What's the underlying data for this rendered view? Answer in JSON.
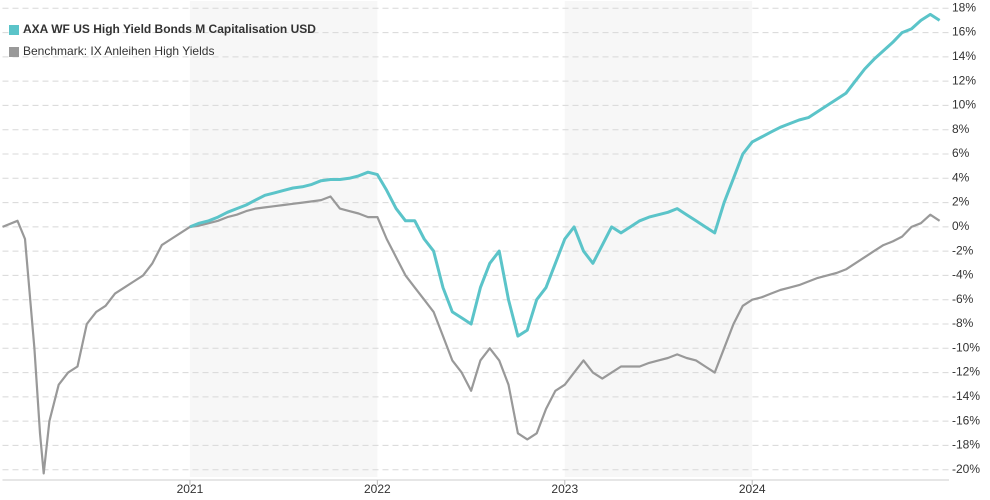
{
  "chart_data": {
    "type": "line",
    "x": [
      2020,
      2020.08,
      2020.12,
      2020.17,
      2020.2,
      2020.22,
      2020.25,
      2020.3,
      2020.35,
      2020.4,
      2020.45,
      2020.5,
      2020.55,
      2020.6,
      2020.65,
      2020.7,
      2020.75,
      2020.8,
      2020.85,
      2020.9,
      2020.95,
      2021,
      2021.05,
      2021.1,
      2021.15,
      2021.2,
      2021.25,
      2021.3,
      2021.35,
      2021.4,
      2021.45,
      2021.5,
      2021.55,
      2021.6,
      2021.65,
      2021.7,
      2021.75,
      2021.8,
      2021.85,
      2021.9,
      2021.95,
      2022,
      2022.05,
      2022.1,
      2022.15,
      2022.2,
      2022.25,
      2022.3,
      2022.35,
      2022.4,
      2022.45,
      2022.5,
      2022.55,
      2022.6,
      2022.65,
      2022.7,
      2022.75,
      2022.8,
      2022.85,
      2022.9,
      2022.95,
      2023,
      2023.05,
      2023.1,
      2023.15,
      2023.2,
      2023.25,
      2023.3,
      2023.35,
      2023.4,
      2023.45,
      2023.5,
      2023.55,
      2023.6,
      2023.65,
      2023.7,
      2023.75,
      2023.8,
      2023.85,
      2023.9,
      2023.95,
      2024,
      2024.05,
      2024.1,
      2024.15,
      2024.2,
      2024.25,
      2024.3,
      2024.35,
      2024.4,
      2024.45,
      2024.5,
      2024.55,
      2024.6,
      2024.65,
      2024.7,
      2024.75,
      2024.8,
      2024.85,
      2024.9,
      2024.95,
      2025
    ],
    "series": [
      {
        "name": "AXA WF US High Yield Bonds M Capitalisation USD",
        "color": "#5bc4c9",
        "values": [
          null,
          null,
          null,
          null,
          null,
          null,
          null,
          null,
          null,
          null,
          null,
          null,
          null,
          null,
          null,
          null,
          null,
          null,
          null,
          null,
          null,
          0,
          0.3,
          0.5,
          0.8,
          1.2,
          1.5,
          1.8,
          2.2,
          2.6,
          2.8,
          3,
          3.2,
          3.3,
          3.5,
          3.8,
          3.9,
          3.9,
          4.0,
          4.2,
          4.5,
          4.3,
          3,
          1.5,
          0.5,
          0.5,
          -1,
          -2,
          -5,
          -7,
          -7.5,
          -8,
          -5,
          -3,
          -2,
          -6,
          -9,
          -8.5,
          -6,
          -5,
          -3,
          -1,
          0,
          -2,
          -3,
          -1.5,
          0,
          -0.5,
          0,
          0.5,
          0.8,
          1,
          1.2,
          1.5,
          1,
          0.5,
          0,
          -0.5,
          2,
          4,
          6,
          7,
          7.4,
          7.8,
          8.2,
          8.5,
          8.8,
          9,
          9.5,
          10,
          10.5,
          11,
          12,
          13,
          13.8,
          14.5,
          15.2,
          16,
          16.3,
          17,
          17.5,
          17
        ]
      },
      {
        "name": "Benchmark: IX Anleihen High Yields",
        "color": "#999999",
        "values": [
          0,
          0.5,
          -1,
          -10,
          -17,
          -20.3,
          -16,
          -13,
          -12,
          -11.5,
          -8,
          -7,
          -6.5,
          -5.5,
          -5,
          -4.5,
          -4,
          -3,
          -1.5,
          -1,
          -0.5,
          0,
          0.1,
          0.3,
          0.5,
          0.8,
          1.0,
          1.3,
          1.5,
          1.6,
          1.7,
          1.8,
          1.9,
          2.0,
          2.1,
          2.2,
          2.5,
          1.5,
          1.3,
          1.1,
          0.8,
          0.8,
          -1,
          -2.5,
          -4,
          -5,
          -6,
          -7,
          -9,
          -11,
          -12,
          -13.5,
          -11,
          -10,
          -11,
          -13,
          -17,
          -17.5,
          -17,
          -15,
          -13.5,
          -13,
          -12,
          -11,
          -12,
          -12.5,
          -12,
          -11.5,
          -11.5,
          -11.5,
          -11.2,
          -11,
          -10.8,
          -10.5,
          -10.8,
          -11,
          -11.5,
          -12,
          -10,
          -8,
          -6.5,
          -6,
          -5.8,
          -5.5,
          -5.2,
          -5,
          -4.8,
          -4.5,
          -4.2,
          -4,
          -3.8,
          -3.5,
          -3,
          -2.5,
          -2,
          -1.5,
          -1.2,
          -0.8,
          0,
          0.3,
          1,
          0.5
        ]
      }
    ],
    "xlim": [
      2020,
      2025.05
    ],
    "xticks": [
      2021,
      2022,
      2023,
      2024
    ],
    "ylim": [
      -20.6,
      18.6
    ],
    "yticks": [
      {
        "value": -20,
        "label": "-20%"
      },
      {
        "value": -18,
        "label": "-18%"
      },
      {
        "value": -16,
        "label": "-16%"
      },
      {
        "value": -14,
        "label": "-14%"
      },
      {
        "value": -12,
        "label": "-12%"
      },
      {
        "value": -10,
        "label": "-10%"
      },
      {
        "value": -8,
        "label": "-8%"
      },
      {
        "value": -6,
        "label": "-6%"
      },
      {
        "value": -4,
        "label": "-4%"
      },
      {
        "value": -2,
        "label": "-2%"
      },
      {
        "value": 0,
        "label": "0%"
      },
      {
        "value": 2,
        "label": "2%"
      },
      {
        "value": 4,
        "label": "4%"
      },
      {
        "value": 6,
        "label": "6%"
      },
      {
        "value": 8,
        "label": "8%"
      },
      {
        "value": 10,
        "label": "10%"
      },
      {
        "value": 12,
        "label": "12%"
      },
      {
        "value": 14,
        "label": "14%"
      },
      {
        "value": 16,
        "label": "16%"
      },
      {
        "value": 18,
        "label": "18%"
      }
    ],
    "grid": true,
    "legend": "top-left"
  }
}
